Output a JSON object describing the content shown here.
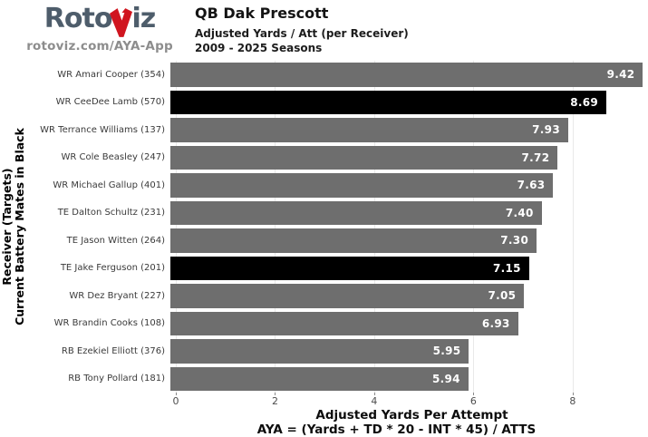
{
  "header": {
    "logo_text_left": "Roto",
    "logo_text_right": "iz",
    "logo_bolt_icon": "lightning-bolt-v-icon",
    "site": "rotoviz.com/AYA-App",
    "title": "QB Dak Prescott",
    "subtitle": "Adjusted Yards / Att (per Receiver)",
    "seasons": "2009 - 2025 Seasons"
  },
  "colors": {
    "bar_gray": "#6e6e6e",
    "bar_black": "#000000",
    "logo_slate": "#4e5d6b",
    "logo_red": "#d0151f",
    "site_text": "#8d8d8d",
    "gridline": "#e9e9e9",
    "tick_text": "#4d4d4d",
    "label_text": "#3a3a3a",
    "value_text": "#ffffff"
  },
  "chart_data": {
    "type": "bar",
    "orientation": "horizontal",
    "title": "QB Dak Prescott",
    "subtitle": "Adjusted Yards / Att (per Receiver)",
    "seasons": "2009 - 2025 Seasons",
    "categories": [
      "WR Amari Cooper (354)",
      "WR CeeDee Lamb (570)",
      "WR Terrance Williams (137)",
      "WR Cole Beasley (247)",
      "WR Michael Gallup (401)",
      "TE Dalton Schultz (231)",
      "TE Jason Witten (264)",
      "TE Jake Ferguson (201)",
      "WR Dez Bryant (227)",
      "WR Brandin Cooks (108)",
      "RB Ezekiel Elliott (376)",
      "RB Tony Pollard (181)"
    ],
    "values": [
      9.42,
      8.69,
      7.93,
      7.72,
      7.63,
      7.4,
      7.3,
      7.15,
      7.05,
      6.93,
      5.95,
      5.94
    ],
    "black_bar_indexes": [
      1,
      7
    ],
    "xlabel": "Adjusted Yards Per Attempt",
    "xlabel_formula": "AYA = (Yards + TD * 20 - INT * 45) / ATTS",
    "ylabel_line1": "Receiver (Targets)",
    "ylabel_line2": "Current Battery Mates in Black",
    "xticks": [
      0,
      2,
      4,
      6,
      8
    ],
    "xlim": [
      0,
      9.52
    ],
    "grid": "vertical-at-ticks",
    "legend": "none"
  }
}
